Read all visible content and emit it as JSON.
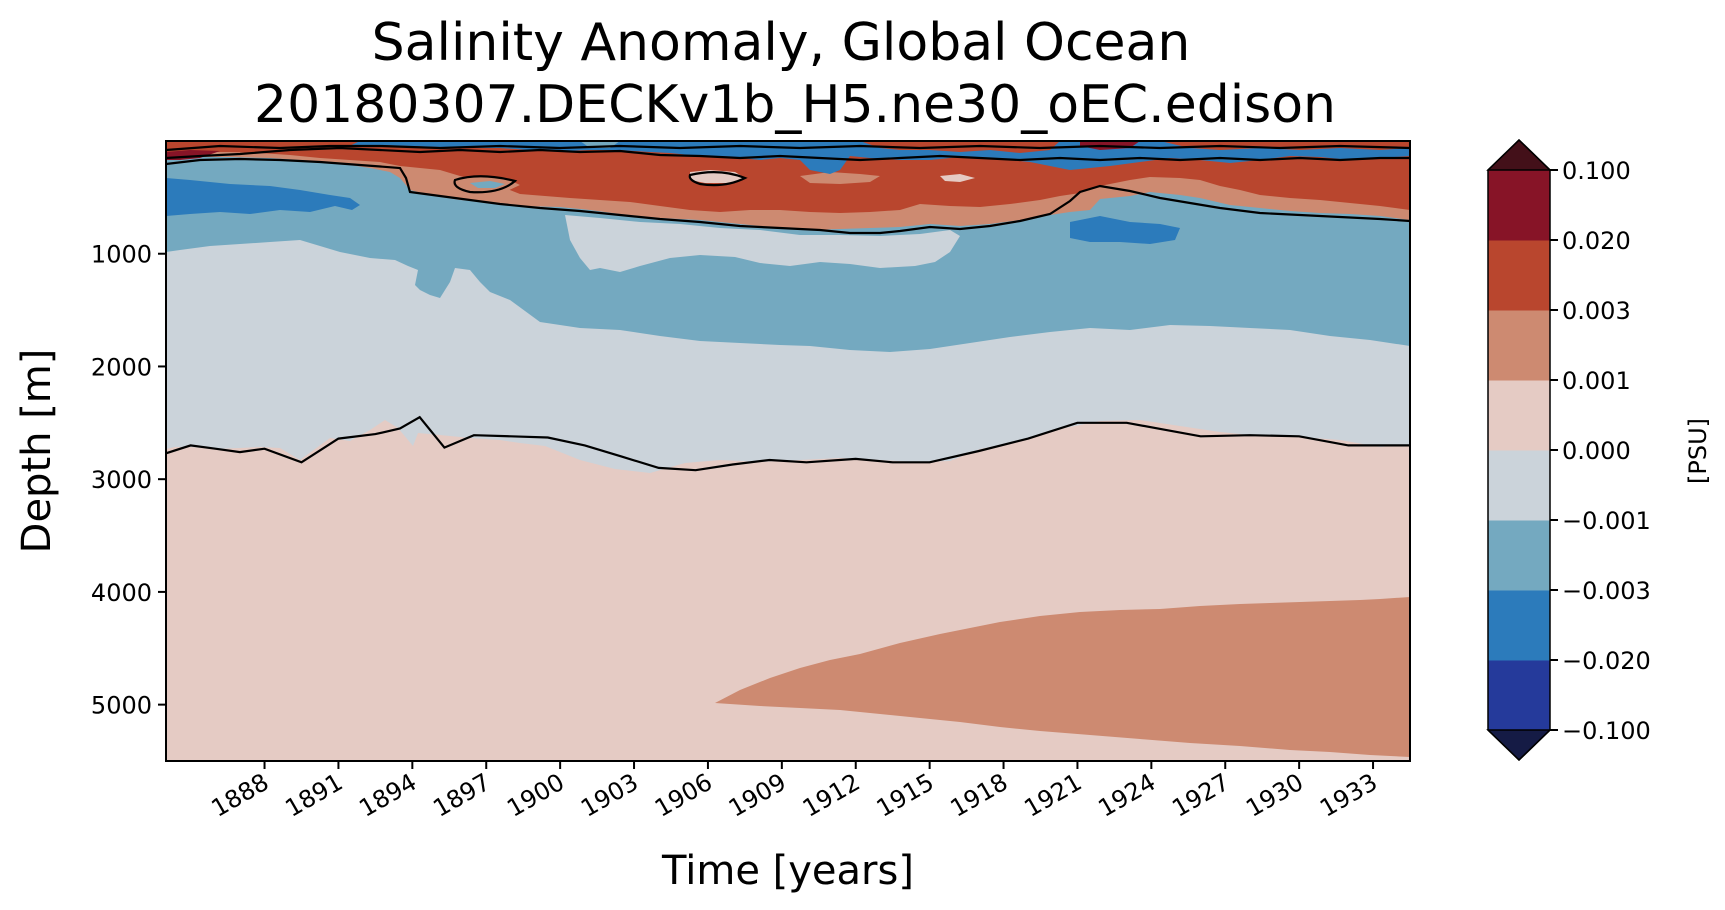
{
  "chart_data": {
    "type": "heatmap",
    "title_line1": "Salinity Anomaly, Global Ocean",
    "title_line2": "20180307.DECKv1b_H5.ne30_oEC.edison",
    "xlabel": "Time [years]",
    "ylabel": "Depth [m]",
    "xlim": [
      1884.0,
      1934.5
    ],
    "ylim": [
      5500,
      0
    ],
    "x_ticks": [
      1888,
      1891,
      1894,
      1897,
      1900,
      1903,
      1906,
      1909,
      1912,
      1915,
      1918,
      1921,
      1924,
      1927,
      1930,
      1933
    ],
    "y_ticks": [
      1000,
      2000,
      3000,
      4000,
      5000
    ],
    "colorbar": {
      "label": "[PSU]",
      "levels": [
        "-0.100",
        "-0.020",
        "-0.003",
        "-0.001",
        "0.000",
        "0.001",
        "0.003",
        "0.020",
        "0.100"
      ],
      "level_labels": [
        "−0.100",
        "−0.020",
        "−0.003",
        "−0.001",
        "0.000",
        "0.001",
        "0.003",
        "0.020",
        "0.100"
      ],
      "colors": [
        "#253a9b",
        "#2c7bbb",
        "#74a9c0",
        "#cbd3da",
        "#e5cbc4",
        "#cd8a71",
        "#b9462e",
        "#871427"
      ],
      "under_color": "#151b45",
      "over_color": "#431019",
      "extend": "both"
    },
    "contour_lines": [
      {
        "level": 0.0,
        "description": "zero line"
      }
    ],
    "regions": [
      {
        "band": "surface layer (0-300 m)",
        "value_range": "mixed -0.02 to 0.1"
      },
      {
        "band": "upper (300-800 m)",
        "value_range": "0.003 to 0.02"
      },
      {
        "band": "intermediate (800-1800 m)",
        "value_range": "-0.003 to -0.001"
      },
      {
        "band": "mid (1800-2700 m)",
        "value_range": "-0.001 to 0.000"
      },
      {
        "band": "deep (2700-5500 m)",
        "value_range": "0.000 to 0.001"
      },
      {
        "band": "abyssal (4100-5400 m, after 1907)",
        "value_range": "0.001 to 0.003"
      }
    ],
    "zero_contour_deep": [
      [
        1884.0,
        2770
      ],
      [
        1885.0,
        2700
      ],
      [
        1886.0,
        2730
      ],
      [
        1887.0,
        2760
      ],
      [
        1888.0,
        2730
      ],
      [
        1889.5,
        2850
      ],
      [
        1891.0,
        2640
      ],
      [
        1892.5,
        2600
      ],
      [
        1893.5,
        2550
      ],
      [
        1894.3,
        2450
      ],
      [
        1895.3,
        2720
      ],
      [
        1896.5,
        2610
      ],
      [
        1898.0,
        2620
      ],
      [
        1899.5,
        2630
      ],
      [
        1901.0,
        2700
      ],
      [
        1902.5,
        2800
      ],
      [
        1904.0,
        2900
      ],
      [
        1905.5,
        2920
      ],
      [
        1907.0,
        2870
      ],
      [
        1908.5,
        2830
      ],
      [
        1910.0,
        2850
      ],
      [
        1912.0,
        2820
      ],
      [
        1913.5,
        2850
      ],
      [
        1915.0,
        2850
      ],
      [
        1917.0,
        2750
      ],
      [
        1919.0,
        2640
      ],
      [
        1921.0,
        2500
      ],
      [
        1923.0,
        2500
      ],
      [
        1924.5,
        2560
      ],
      [
        1926.0,
        2620
      ],
      [
        1928.0,
        2610
      ],
      [
        1930.0,
        2620
      ],
      [
        1932.0,
        2700
      ],
      [
        1934.5,
        2700
      ]
    ]
  }
}
